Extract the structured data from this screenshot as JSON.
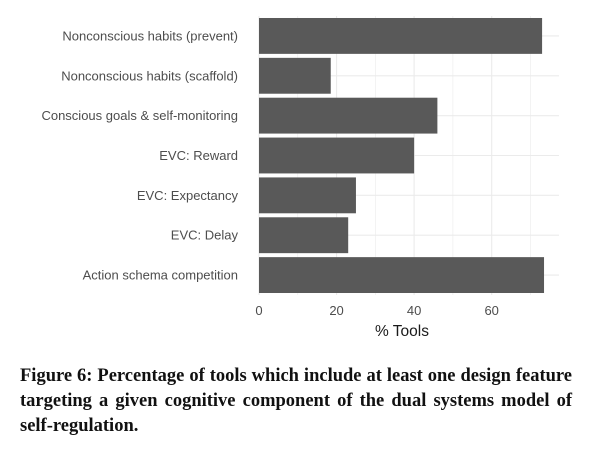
{
  "chart_data": {
    "type": "bar",
    "orientation": "horizontal",
    "categories": [
      "Nonconscious habits (prevent)",
      "Nonconscious habits (scaffold)",
      "Conscious goals & self-monitoring",
      "EVC: Reward",
      "EVC: Expectancy",
      "EVC: Delay",
      "Action schema competition"
    ],
    "values": [
      73,
      18.5,
      46,
      40,
      25,
      23,
      73.5
    ],
    "xlabel": "% Tools",
    "ylabel": "",
    "xlim": [
      0,
      77
    ],
    "xticks": [
      0,
      20,
      40,
      60
    ],
    "grid": true,
    "bar_color": "#595959",
    "grid_color": "#ebebeb"
  },
  "caption": "Figure 6: Percentage of tools which include at least one de­sign feature targeting a given cognitive component of the dual systems model of self-regulation."
}
